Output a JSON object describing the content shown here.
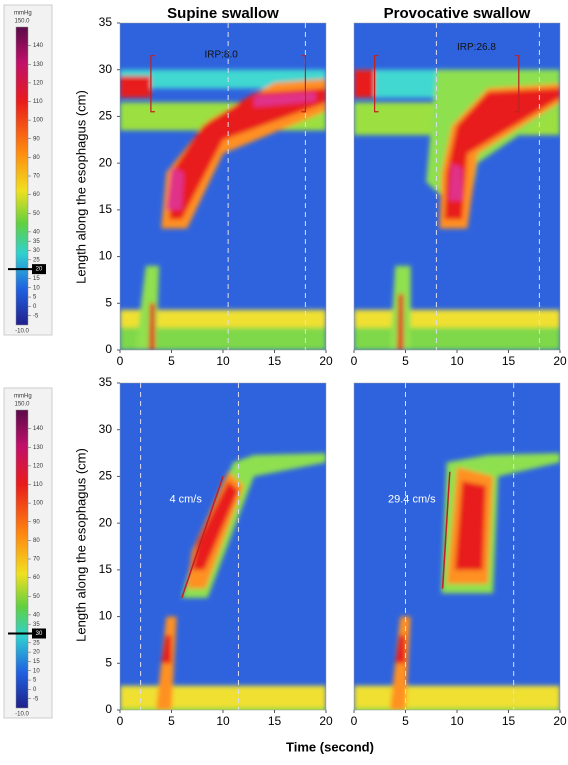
{
  "colorbars": [
    {
      "unit": "mmHg",
      "max": "150.0",
      "min": "-10.0",
      "ylim": [
        -10,
        150
      ],
      "ticks": [
        140,
        130,
        120,
        110,
        100,
        90,
        80,
        70,
        60,
        50,
        40,
        35,
        30,
        25,
        15,
        10,
        5,
        0,
        -5
      ],
      "isobar": 20
    },
    {
      "unit": "mmHg",
      "max": "150.0",
      "min": "-10.0",
      "ylim": [
        -10,
        150
      ],
      "ticks": [
        140,
        130,
        120,
        110,
        100,
        90,
        80,
        70,
        60,
        50,
        40,
        35,
        25,
        20,
        15,
        10,
        5,
        0,
        -5
      ],
      "isobar": 30
    }
  ],
  "ylabel": "Length along  the  esophagus (cm)",
  "xlabel": "Time (second)",
  "chart_data": [
    {
      "type": "heatmap",
      "title": "Supine swallow",
      "xlim": [
        0,
        20
      ],
      "ylim": [
        35,
        0
      ],
      "xticks": [
        0,
        5,
        10,
        15,
        20
      ],
      "yticks": [
        0,
        5,
        10,
        15,
        20,
        25,
        30,
        35
      ],
      "annotation": "IRP:8.0"
    },
    {
      "type": "heatmap",
      "title": "Provocative swallow",
      "xlim": [
        0,
        20
      ],
      "ylim": [
        35,
        0
      ],
      "xticks": [
        0,
        5,
        10,
        15,
        20
      ],
      "annotation": "IRP:26.8"
    },
    {
      "type": "heatmap",
      "xlim": [
        0,
        20
      ],
      "ylim": [
        35,
        0
      ],
      "xticks": [
        0,
        5,
        10,
        15,
        20
      ],
      "yticks": [
        0,
        5,
        10,
        15,
        20,
        25,
        30,
        35
      ],
      "annotation": "4 cm/s"
    },
    {
      "type": "heatmap",
      "xlim": [
        0,
        20
      ],
      "ylim": [
        35,
        0
      ],
      "xticks": [
        0,
        5,
        10,
        15,
        20
      ],
      "annotation": "29.4 cm/s"
    }
  ]
}
